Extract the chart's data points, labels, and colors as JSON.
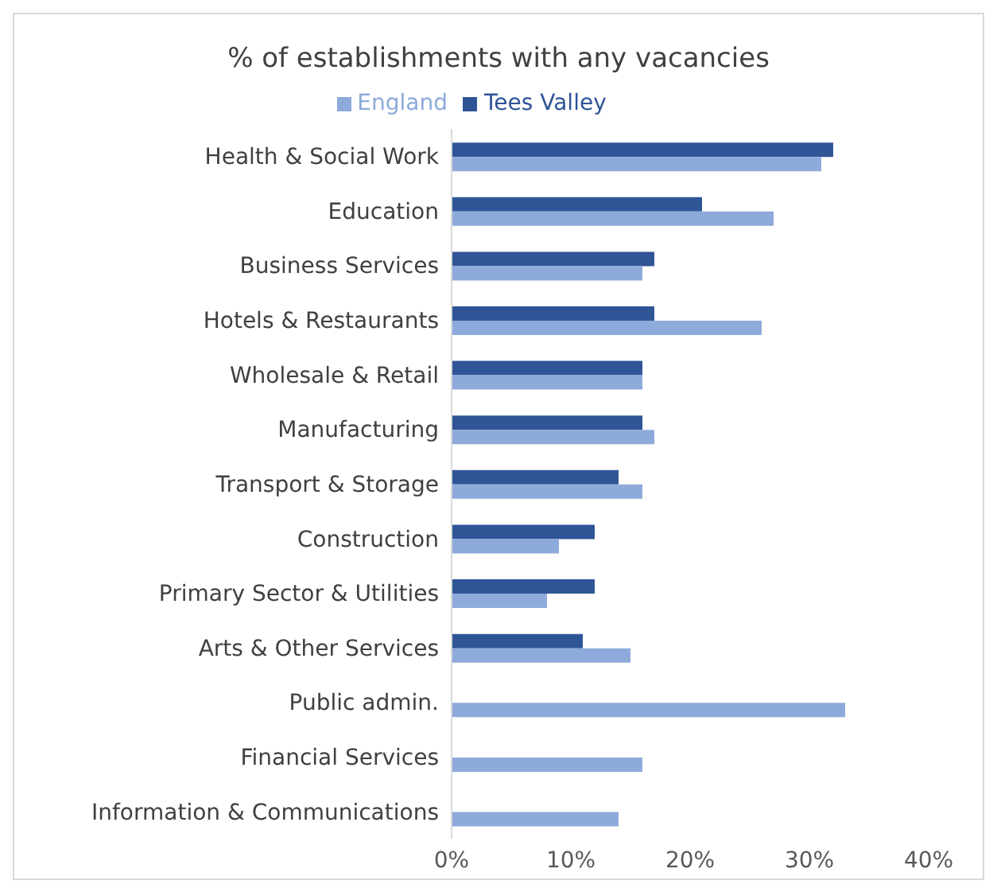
{
  "chart_data": {
    "type": "bar",
    "orientation": "horizontal",
    "title": "% of establishments with any vacancies",
    "categories": [
      "Health & Social Work",
      "Education",
      "Business Services",
      "Hotels & Restaurants",
      "Wholesale & Retail",
      "Manufacturing",
      "Transport & Storage",
      "Construction",
      "Primary Sector & Utilities",
      "Arts & Other Services",
      "Public admin.",
      "Financial Services",
      "Information & Communications"
    ],
    "series": [
      {
        "name": "Tees Valley",
        "color": "#2f5597",
        "values": [
          32,
          21,
          17,
          17,
          16,
          16,
          14,
          12,
          12,
          11,
          null,
          null,
          null
        ]
      },
      {
        "name": "England",
        "color": "#8eaadb",
        "values": [
          31,
          27,
          16,
          26,
          16,
          17,
          16,
          9,
          8,
          15,
          33,
          16,
          14
        ]
      }
    ],
    "xlim": [
      0,
      40
    ],
    "xticks": [
      {
        "value": 0,
        "label": "0%"
      },
      {
        "value": 10,
        "label": "10%"
      },
      {
        "value": 20,
        "label": "20%"
      },
      {
        "value": 30,
        "label": "30%"
      },
      {
        "value": 40,
        "label": "40%"
      }
    ],
    "grid": false,
    "legend": "top"
  }
}
